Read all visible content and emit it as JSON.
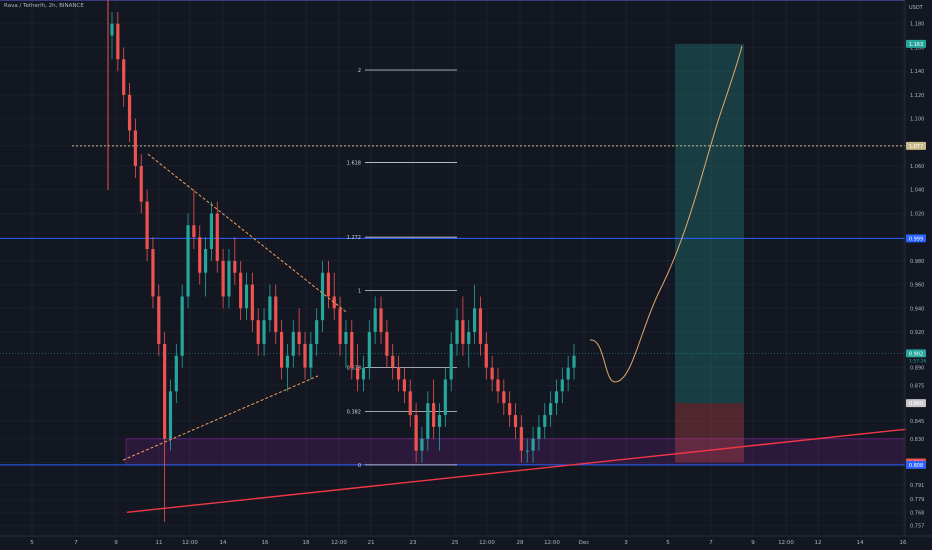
{
  "header": {
    "title": "Rava / Tetherlh, 2h, BINANCE"
  },
  "chart_data": {
    "type": "candlestick",
    "y_unit": "USDT",
    "y_ticks": [
      1.18,
      1.16,
      1.14,
      1.12,
      1.1,
      1.077,
      1.06,
      1.04,
      1.02,
      1.0,
      0.98,
      0.96,
      0.94,
      0.92,
      0.902,
      0.89,
      0.875,
      0.86,
      0.845,
      0.83,
      0.81,
      0.791,
      0.779,
      0.768,
      0.757
    ],
    "y_tick_labels": [
      "1.180",
      "1.160",
      "1.140",
      "1.120",
      "1.100",
      "1.077",
      "1.060",
      "1.040",
      "1.020",
      "0.980",
      "0.960",
      "0.940",
      "0.920",
      "0.890",
      "0.875",
      "0.845",
      "0.830",
      "0.810",
      "0.791",
      "0.779",
      "0.768",
      "0.757"
    ],
    "x_tick_labels": [
      "5",
      "7",
      "9",
      "11",
      "12:00",
      "14",
      "16",
      "18",
      "12:00",
      "21",
      "23",
      "25",
      "12:00",
      "28",
      "12:00",
      "Dec",
      "3",
      "5",
      "7",
      "9",
      "12:00",
      "12",
      "14",
      "16"
    ],
    "price_badges": [
      {
        "label": "1.163",
        "value": 1.163,
        "color": "#26a69a"
      },
      {
        "label": "1.077",
        "value": 1.077,
        "color": "#c8b98a"
      },
      {
        "label": "0.999",
        "value": 0.999,
        "color": "#2962ff"
      },
      {
        "label": "0.902",
        "value": 0.902,
        "color": "#26a69a"
      },
      {
        "label": "0.860",
        "value": 0.86,
        "color": "#c8c8c8"
      },
      {
        "label": "0.810",
        "value": 0.81,
        "color": "#ef5350"
      },
      {
        "label": "0.808",
        "value": 0.808,
        "color": "#2962ff"
      }
    ],
    "countdown": "1:57:26",
    "horizontal_levels": [
      {
        "value": 1.2,
        "style": "solid",
        "color": "#5c5fd6"
      },
      {
        "value": 1.077,
        "style": "dotted",
        "color": "#c8b98a"
      },
      {
        "value": 0.999,
        "style": "solid",
        "color": "#2962ff"
      },
      {
        "value": 0.808,
        "style": "solid",
        "color": "#2962ff"
      }
    ],
    "fib_levels": [
      {
        "label": "2",
        "value": 1.141
      },
      {
        "label": "1.618",
        "value": 1.063
      },
      {
        "label": "1.272",
        "value": 1.0
      },
      {
        "label": "1",
        "value": 0.955
      },
      {
        "label": "0.618",
        "value": 0.89
      },
      {
        "label": "0.382",
        "value": 0.853
      },
      {
        "label": "0",
        "value": 0.808
      }
    ],
    "demand_zone": {
      "from_price": 0.808,
      "to_price": 0.83,
      "color": "#9c27b0"
    },
    "position_tool": {
      "entry": 0.86,
      "target": 1.163,
      "stop": 0.81
    },
    "triangle": {
      "upper": [
        [
          11,
          1.07
        ],
        [
          19.5,
          0.937
        ]
      ],
      "lower": [
        [
          9.2,
          0.812
        ],
        [
          18.5,
          0.883
        ]
      ]
    },
    "trendline_support": [
      [
        9.2,
        0.768
      ],
      [
        16.1,
        0.838
      ]
    ],
    "projection": [
      [
        1.3,
        0.889
      ],
      [
        1.5,
        0.867
      ],
      [
        1.9,
        0.855
      ],
      [
        2.6,
        0.895
      ],
      [
        3.5,
        0.96
      ],
      [
        4.4,
        1.02
      ],
      [
        5.3,
        1.09
      ],
      [
        6.2,
        1.165
      ]
    ],
    "candles": [
      [
        1.17,
        1.19,
        1.15,
        1.18
      ],
      [
        1.18,
        1.19,
        1.14,
        1.15
      ],
      [
        1.15,
        1.16,
        1.11,
        1.12
      ],
      [
        1.12,
        1.13,
        1.08,
        1.09
      ],
      [
        1.09,
        1.1,
        1.05,
        1.06
      ],
      [
        1.06,
        1.07,
        1.02,
        1.03
      ],
      [
        1.03,
        1.04,
        0.98,
        0.99
      ],
      [
        0.99,
        1.0,
        0.94,
        0.95
      ],
      [
        0.95,
        0.96,
        0.9,
        0.91
      ],
      [
        0.91,
        0.92,
        0.76,
        0.83
      ],
      [
        0.83,
        0.88,
        0.82,
        0.87
      ],
      [
        0.87,
        0.91,
        0.86,
        0.9
      ],
      [
        0.9,
        0.96,
        0.89,
        0.95
      ],
      [
        0.95,
        1.02,
        0.94,
        1.01
      ],
      [
        1.01,
        1.04,
        0.99,
        1.0
      ],
      [
        1.0,
        1.01,
        0.96,
        0.97
      ],
      [
        0.97,
        1.0,
        0.95,
        0.99
      ],
      [
        0.99,
        1.03,
        0.98,
        1.02
      ],
      [
        1.02,
        1.03,
        0.97,
        0.98
      ],
      [
        0.98,
        0.99,
        0.94,
        0.95
      ],
      [
        0.95,
        0.99,
        0.94,
        0.98
      ],
      [
        0.98,
        1.0,
        0.96,
        0.97
      ],
      [
        0.97,
        0.98,
        0.93,
        0.94
      ],
      [
        0.94,
        0.97,
        0.93,
        0.96
      ],
      [
        0.96,
        0.97,
        0.92,
        0.93
      ],
      [
        0.93,
        0.94,
        0.9,
        0.91
      ],
      [
        0.91,
        0.94,
        0.9,
        0.93
      ],
      [
        0.93,
        0.96,
        0.92,
        0.95
      ],
      [
        0.95,
        0.96,
        0.91,
        0.92
      ],
      [
        0.92,
        0.93,
        0.88,
        0.89
      ],
      [
        0.89,
        0.91,
        0.87,
        0.9
      ],
      [
        0.9,
        0.93,
        0.89,
        0.92
      ],
      [
        0.92,
        0.94,
        0.9,
        0.91
      ],
      [
        0.91,
        0.92,
        0.88,
        0.89
      ],
      [
        0.89,
        0.92,
        0.88,
        0.91
      ],
      [
        0.91,
        0.94,
        0.9,
        0.93
      ],
      [
        0.93,
        0.98,
        0.92,
        0.97
      ],
      [
        0.97,
        0.98,
        0.94,
        0.95
      ],
      [
        0.95,
        0.97,
        0.93,
        0.94
      ],
      [
        0.94,
        0.95,
        0.9,
        0.91
      ],
      [
        0.91,
        0.93,
        0.89,
        0.92
      ],
      [
        0.92,
        0.93,
        0.88,
        0.89
      ],
      [
        0.89,
        0.91,
        0.87,
        0.88
      ],
      [
        0.88,
        0.9,
        0.87,
        0.89
      ],
      [
        0.89,
        0.93,
        0.88,
        0.92
      ],
      [
        0.92,
        0.95,
        0.91,
        0.94
      ],
      [
        0.94,
        0.95,
        0.91,
        0.92
      ],
      [
        0.92,
        0.93,
        0.89,
        0.9
      ],
      [
        0.9,
        0.91,
        0.88,
        0.89
      ],
      [
        0.89,
        0.9,
        0.87,
        0.88
      ],
      [
        0.88,
        0.89,
        0.86,
        0.87
      ],
      [
        0.87,
        0.88,
        0.84,
        0.85
      ],
      [
        0.85,
        0.86,
        0.81,
        0.82
      ],
      [
        0.82,
        0.84,
        0.81,
        0.83
      ],
      [
        0.83,
        0.87,
        0.82,
        0.86
      ],
      [
        0.86,
        0.88,
        0.83,
        0.84
      ],
      [
        0.84,
        0.86,
        0.82,
        0.85
      ],
      [
        0.85,
        0.89,
        0.84,
        0.88
      ],
      [
        0.88,
        0.92,
        0.87,
        0.91
      ],
      [
        0.91,
        0.94,
        0.9,
        0.93
      ],
      [
        0.93,
        0.95,
        0.9,
        0.91
      ],
      [
        0.91,
        0.93,
        0.89,
        0.92
      ],
      [
        0.92,
        0.96,
        0.91,
        0.94
      ],
      [
        0.94,
        0.95,
        0.9,
        0.91
      ],
      [
        0.91,
        0.92,
        0.88,
        0.89
      ],
      [
        0.89,
        0.9,
        0.87,
        0.88
      ],
      [
        0.88,
        0.89,
        0.86,
        0.87
      ],
      [
        0.87,
        0.88,
        0.85,
        0.86
      ],
      [
        0.86,
        0.87,
        0.84,
        0.85
      ],
      [
        0.85,
        0.86,
        0.83,
        0.84
      ],
      [
        0.84,
        0.85,
        0.81,
        0.82
      ],
      [
        0.82,
        0.83,
        0.81,
        0.82
      ],
      [
        0.82,
        0.84,
        0.81,
        0.83
      ],
      [
        0.83,
        0.85,
        0.82,
        0.84
      ],
      [
        0.84,
        0.86,
        0.83,
        0.85
      ],
      [
        0.85,
        0.87,
        0.84,
        0.86
      ],
      [
        0.86,
        0.88,
        0.85,
        0.87
      ],
      [
        0.87,
        0.89,
        0.86,
        0.88
      ],
      [
        0.88,
        0.9,
        0.87,
        0.89
      ],
      [
        0.89,
        0.91,
        0.88,
        0.9
      ]
    ]
  }
}
